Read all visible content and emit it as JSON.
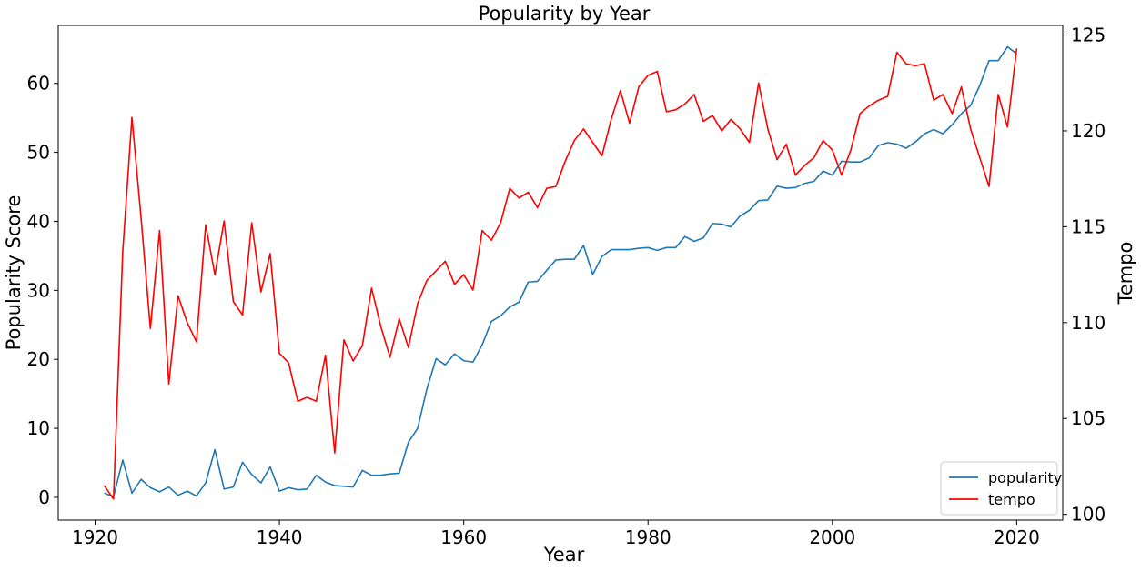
{
  "chart_data": {
    "type": "line",
    "title": "Popularity by Year",
    "xlabel": "Year",
    "ylabel": "Popularity Score",
    "ylabel_right": "Tempo",
    "xlim": [
      1916,
      2025
    ],
    "ylim": [
      -3.3,
      68.4
    ],
    "ylim_right": [
      99.7,
      125.5
    ],
    "x_ticks": [
      1920,
      1940,
      1960,
      1980,
      2000,
      2020
    ],
    "y_ticks": [
      0,
      10,
      20,
      30,
      40,
      50,
      60
    ],
    "y_ticks_right": [
      100,
      105,
      110,
      115,
      120,
      125
    ],
    "grid": false,
    "legend_position": "lower right",
    "x": [
      1921,
      1922,
      1923,
      1924,
      1925,
      1926,
      1927,
      1928,
      1929,
      1930,
      1931,
      1932,
      1933,
      1934,
      1935,
      1936,
      1937,
      1938,
      1939,
      1940,
      1941,
      1942,
      1943,
      1944,
      1945,
      1946,
      1947,
      1948,
      1949,
      1950,
      1951,
      1952,
      1953,
      1954,
      1955,
      1956,
      1957,
      1958,
      1959,
      1960,
      1961,
      1962,
      1963,
      1964,
      1965,
      1966,
      1967,
      1968,
      1969,
      1970,
      1971,
      1972,
      1973,
      1974,
      1975,
      1976,
      1977,
      1978,
      1979,
      1980,
      1981,
      1982,
      1983,
      1984,
      1985,
      1986,
      1987,
      1988,
      1989,
      1990,
      1991,
      1992,
      1993,
      1994,
      1995,
      1996,
      1997,
      1998,
      1999,
      2000,
      2001,
      2002,
      2003,
      2004,
      2005,
      2006,
      2007,
      2008,
      2009,
      2010,
      2011,
      2012,
      2013,
      2014,
      2015,
      2016,
      2017,
      2018,
      2019,
      2020
    ],
    "series": [
      {
        "name": "popularity",
        "axis": "left",
        "color": "#1f77b4",
        "values": [
          0.6,
          0.1,
          5.4,
          0.6,
          2.6,
          1.4,
          0.8,
          1.5,
          0.3,
          0.9,
          0.2,
          2.1,
          6.9,
          1.2,
          1.5,
          5.1,
          3.3,
          2.1,
          4.4,
          0.9,
          1.4,
          1.1,
          1.2,
          3.2,
          2.2,
          1.7,
          1.6,
          1.5,
          3.9,
          3.2,
          3.2,
          3.4,
          3.5,
          8.0,
          10.0,
          15.7,
          20.1,
          19.2,
          20.8,
          19.8,
          19.6,
          22.1,
          25.5,
          26.3,
          27.6,
          28.3,
          31.2,
          31.3,
          32.9,
          34.4,
          34.5,
          34.5,
          36.5,
          32.3,
          34.9,
          35.9,
          35.9,
          35.9,
          36.1,
          36.2,
          35.8,
          36.2,
          36.2,
          37.8,
          37.1,
          37.6,
          39.7,
          39.6,
          39.2,
          40.8,
          41.6,
          43.0,
          43.1,
          45.1,
          44.8,
          44.9,
          45.5,
          45.8,
          47.3,
          46.7,
          48.7,
          48.6,
          48.6,
          49.2,
          51.0,
          51.4,
          51.2,
          50.6,
          51.5,
          52.7,
          53.3,
          52.7,
          54.0,
          55.6,
          56.8,
          59.7,
          63.3,
          63.3,
          65.3,
          64.3
        ]
      },
      {
        "name": "tempo",
        "axis": "right",
        "color": "#ff0000",
        "values": [
          101.5,
          100.8,
          113.7,
          120.7,
          115.4,
          109.7,
          114.8,
          106.8,
          111.4,
          110.0,
          109.0,
          115.1,
          112.5,
          115.3,
          111.1,
          110.4,
          115.2,
          111.6,
          113.6,
          108.4,
          107.9,
          105.9,
          106.1,
          105.9,
          108.3,
          103.2,
          109.1,
          108.0,
          108.8,
          111.8,
          109.8,
          108.2,
          110.2,
          108.7,
          111.0,
          112.2,
          112.7,
          113.2,
          112.0,
          112.5,
          111.7,
          114.8,
          114.3,
          115.2,
          117.0,
          116.5,
          116.8,
          116.0,
          117.0,
          117.1,
          118.4,
          119.5,
          120.1,
          119.4,
          118.7,
          120.6,
          122.1,
          120.4,
          122.3,
          122.9,
          123.1,
          121.0,
          121.1,
          121.4,
          121.9,
          120.5,
          120.8,
          120.0,
          120.6,
          120.1,
          119.4,
          122.5,
          120.1,
          118.5,
          119.3,
          117.7,
          118.2,
          118.6,
          119.5,
          119.0,
          117.7,
          119.0,
          120.9,
          121.3,
          121.6,
          121.8,
          124.1,
          123.5,
          123.4,
          123.5,
          121.6,
          121.9,
          120.9,
          122.3,
          120.1,
          118.6,
          117.1,
          121.9,
          120.2,
          124.3
        ]
      }
    ]
  }
}
